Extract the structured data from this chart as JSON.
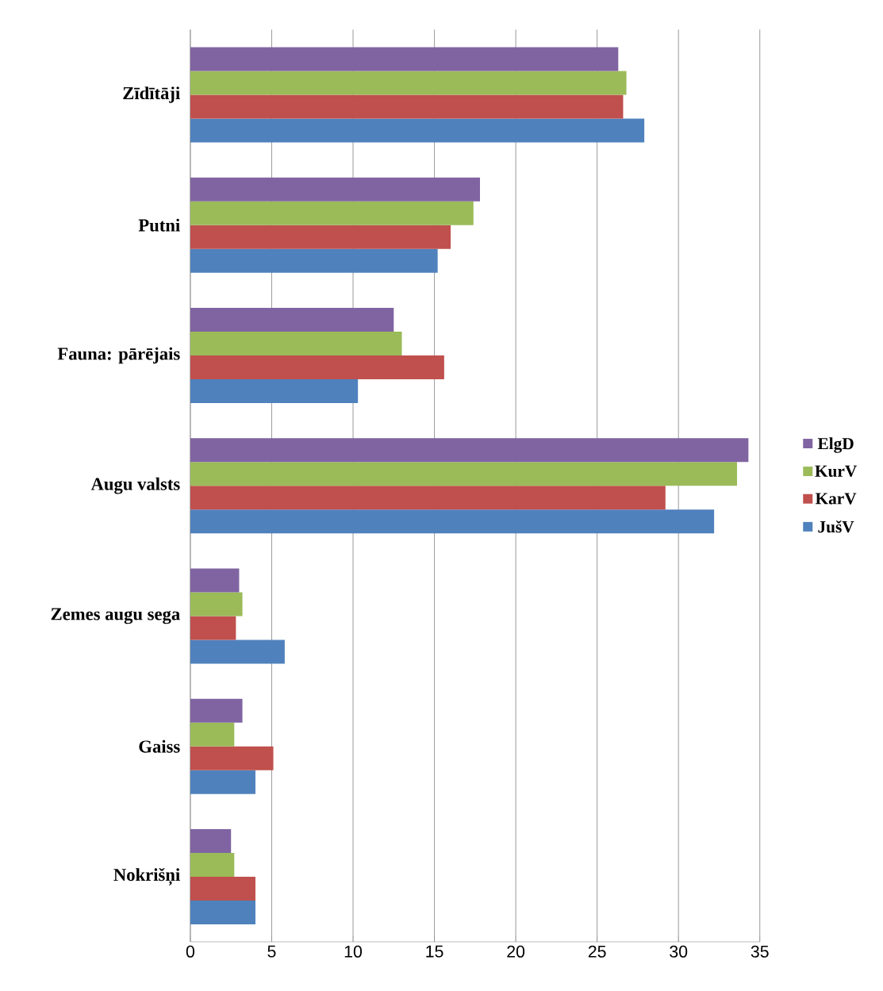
{
  "chart_data": {
    "type": "bar",
    "orientation": "horizontal",
    "categories": [
      "Zīdītāji",
      "Putni",
      "Fauna: pārējais",
      "Augu valsts",
      "Zemes augu sega",
      "Gaiss",
      "Nokrišņi"
    ],
    "series": [
      {
        "name": "JušV",
        "color": "#4f81bd",
        "values": [
          27.9,
          15.2,
          10.3,
          32.2,
          5.8,
          4.0,
          4.0
        ]
      },
      {
        "name": "KarV",
        "color": "#c0504d",
        "values": [
          26.6,
          16.0,
          15.6,
          29.2,
          2.8,
          5.1,
          4.0
        ]
      },
      {
        "name": "KurV",
        "color": "#9bbb59",
        "values": [
          26.8,
          17.4,
          13.0,
          33.6,
          3.2,
          2.7,
          2.7
        ]
      },
      {
        "name": "ElgD",
        "color": "#8064a2",
        "values": [
          26.3,
          17.8,
          12.5,
          34.3,
          3.0,
          3.2,
          2.5
        ]
      }
    ],
    "xlim": [
      0,
      35
    ],
    "xticks": [
      0,
      5,
      10,
      15,
      20,
      25,
      30,
      35
    ],
    "grid": "x",
    "legend": "right"
  }
}
